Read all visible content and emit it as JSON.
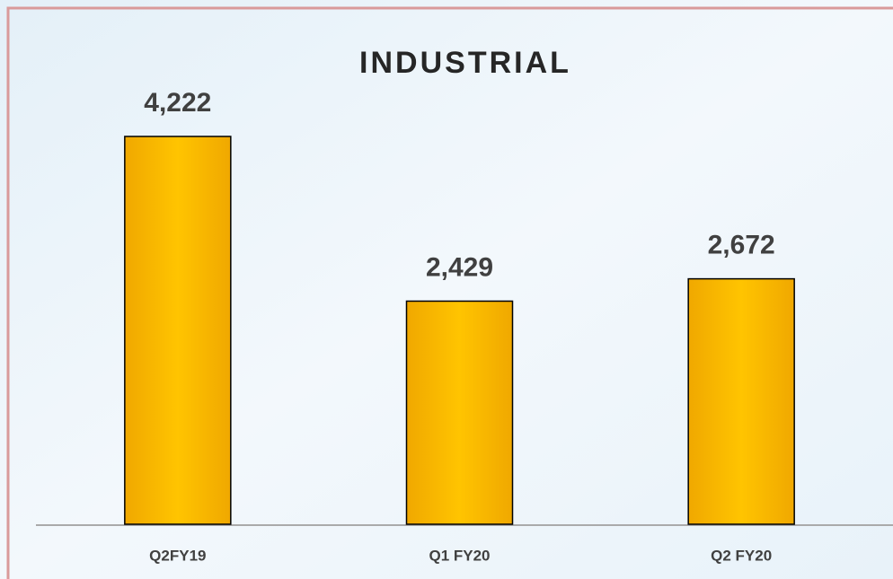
{
  "chart_data": {
    "type": "bar",
    "title": "INDUSTRIAL",
    "categories": [
      "Q2FY19",
      "Q1 FY20",
      "Q2 FY20"
    ],
    "values": [
      4222,
      2429,
      2672
    ],
    "value_labels": [
      "4,222",
      "2,429",
      "2,672"
    ],
    "color": "#ffc000"
  }
}
